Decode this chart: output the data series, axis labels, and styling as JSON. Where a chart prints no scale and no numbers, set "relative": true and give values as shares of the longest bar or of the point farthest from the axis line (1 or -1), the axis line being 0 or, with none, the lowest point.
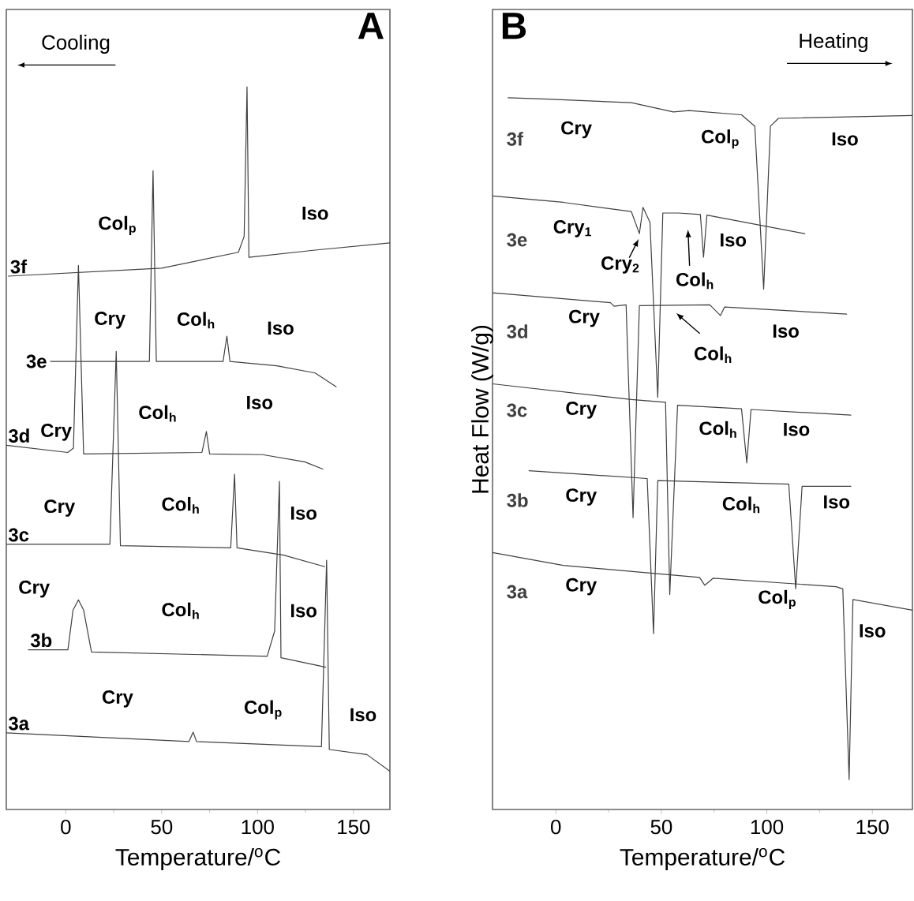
{
  "chart_data": [
    {
      "type": "line",
      "title": "A",
      "xlabel": "Temperature/$^{o}$C",
      "relative": true,
      "xlim": [
        -31,
        169
      ],
      "xticks": [
        0,
        50,
        100,
        150
      ],
      "annotations": [
        "Cooling",
        "Col$_{p}$",
        "Iso",
        "Cry",
        "Col$_{h}$",
        "Iso",
        "Cry",
        "Col$_{h}$",
        "Iso",
        "Cry",
        "Col$_{h}$",
        "Iso",
        "Cry",
        "Col$_{h}$",
        "Iso",
        "Cry",
        "Col$_{p}$",
        "Iso"
      ],
      "series": [
        {
          "name": "3f",
          "color": "#404040",
          "x": [
            -30,
            50,
            90,
            93,
            94.5,
            95.5,
            130,
            169
          ],
          "values": [
            0.738,
            0.749,
            0.771,
            0.793,
            1.0,
            0.764,
            0.774,
            0.784
          ]
        },
        {
          "name": "3e",
          "color": "#404040",
          "x": [
            -8,
            43.6,
            45.5,
            47.2,
            82,
            84,
            85.6,
            110,
            130,
            141
          ],
          "values": [
            0.62,
            0.62,
            0.884,
            0.62,
            0.62,
            0.655,
            0.62,
            0.614,
            0.604,
            0.585
          ]
        },
        {
          "name": "3d",
          "color": "#404040",
          "x": [
            -31,
            1,
            4,
            6.6,
            9.3,
            71,
            73.3,
            75,
            102.6,
            124.5,
            134
          ],
          "values": [
            0.504,
            0.494,
            0.5,
            0.753,
            0.492,
            0.494,
            0.523,
            0.492,
            0.491,
            0.481,
            0.471
          ]
        },
        {
          "name": "3c",
          "color": "#404040",
          "x": [
            -31,
            23,
            26.3,
            28.5,
            86,
            88,
            89.3,
            113.6,
            135
          ],
          "values": [
            0.367,
            0.367,
            0.634,
            0.365,
            0.362,
            0.464,
            0.362,
            0.352,
            0.336
          ]
        },
        {
          "name": "3b",
          "color": "#404040",
          "x": [
            -19.5,
            1.1,
            3.8,
            6.6,
            9.3,
            13.4,
            105,
            108.9,
            111.4,
            112.2,
            135.5
          ],
          "values": [
            0.221,
            0.221,
            0.276,
            0.29,
            0.276,
            0.218,
            0.212,
            0.247,
            0.454,
            0.21,
            0.197
          ]
        },
        {
          "name": "3a",
          "color": "#404040",
          "x": [
            -31,
            64.2,
            66.4,
            68.2,
            133.3,
            136,
            137.4,
            157,
            169
          ],
          "values": [
            0.106,
            0.094,
            0.107,
            0.094,
            0.087,
            0.345,
            0.083,
            0.076,
            0.053
          ]
        }
      ]
    },
    {
      "type": "line",
      "title": "B",
      "xlabel": "Temperature/$^{o}$C",
      "ylabel": "Heat Flow (W/g)",
      "relative": true,
      "xlim": [
        -30,
        169
      ],
      "xticks": [
        0,
        50,
        100,
        150
      ],
      "annotations": [
        "Heating",
        "Cry",
        "Col$_{p}$",
        "Iso",
        "Cry$_{1}$",
        "Cry$_{2}$",
        "Col$_{h}$",
        "Iso",
        "Cry",
        "Col$_{h}$",
        "Iso",
        "Cry",
        "Col$_{h}$",
        "Iso",
        "Cry",
        "Col$_{h}$",
        "Iso",
        "Cry",
        "Col$_{p}$",
        "Iso"
      ],
      "series": [
        {
          "name": "3f",
          "color": "#404040",
          "x": [
            -22.6,
            -4,
            35.8,
            55.7,
            63.2,
            88,
            94.3,
            98.5,
            101.7,
            105.5,
            169
          ],
          "values": [
            1.0,
            0.998,
            0.993,
            0.98,
            0.982,
            0.976,
            0.96,
            0.731,
            0.96,
            0.971,
            0.975
          ]
        },
        {
          "name": "3e",
          "color": "#404040",
          "x": [
            -30,
            3.5,
            35.8,
            39.6,
            41.3,
            44.6,
            48.3,
            50.7,
            58,
            68.5,
            70,
            71.6,
            118
          ],
          "values": [
            0.862,
            0.853,
            0.84,
            0.809,
            0.846,
            0.825,
            0.579,
            0.838,
            0.838,
            0.836,
            0.776,
            0.835,
            0.809
          ]
        },
        {
          "name": "3d",
          "color": "#404040",
          "x": [
            -30,
            25.9,
            27.6,
            33.3,
            36.6,
            39.6,
            73,
            78,
            80,
            137.8
          ],
          "values": [
            0.726,
            0.712,
            0.707,
            0.709,
            0.41,
            0.708,
            0.709,
            0.694,
            0.706,
            0.696
          ]
        },
        {
          "name": "3c",
          "color": "#404040",
          "x": [
            -30,
            35.8,
            52,
            54,
            57.7,
            88,
            90.5,
            92.5,
            139.8
          ],
          "values": [
            0.598,
            0.576,
            0.572,
            0.302,
            0.568,
            0.563,
            0.487,
            0.562,
            0.554
          ]
        },
        {
          "name": "3b",
          "color": "#404040",
          "x": [
            -12.7,
            43.3,
            46.3,
            48.3,
            110.4,
            113.7,
            116.7,
            139.8
          ],
          "values": [
            0.476,
            0.465,
            0.247,
            0.462,
            0.457,
            0.31,
            0.454,
            0.454
          ]
        },
        {
          "name": "3a",
          "color": "#404040",
          "x": [
            -30,
            3.5,
            68.1,
            70.6,
            74.6,
            132.8,
            136,
            139,
            140.8,
            169
          ],
          "values": [
            0.361,
            0.343,
            0.326,
            0.315,
            0.325,
            0.313,
            0.31,
            0.042,
            0.295,
            0.28
          ]
        }
      ]
    }
  ]
}
